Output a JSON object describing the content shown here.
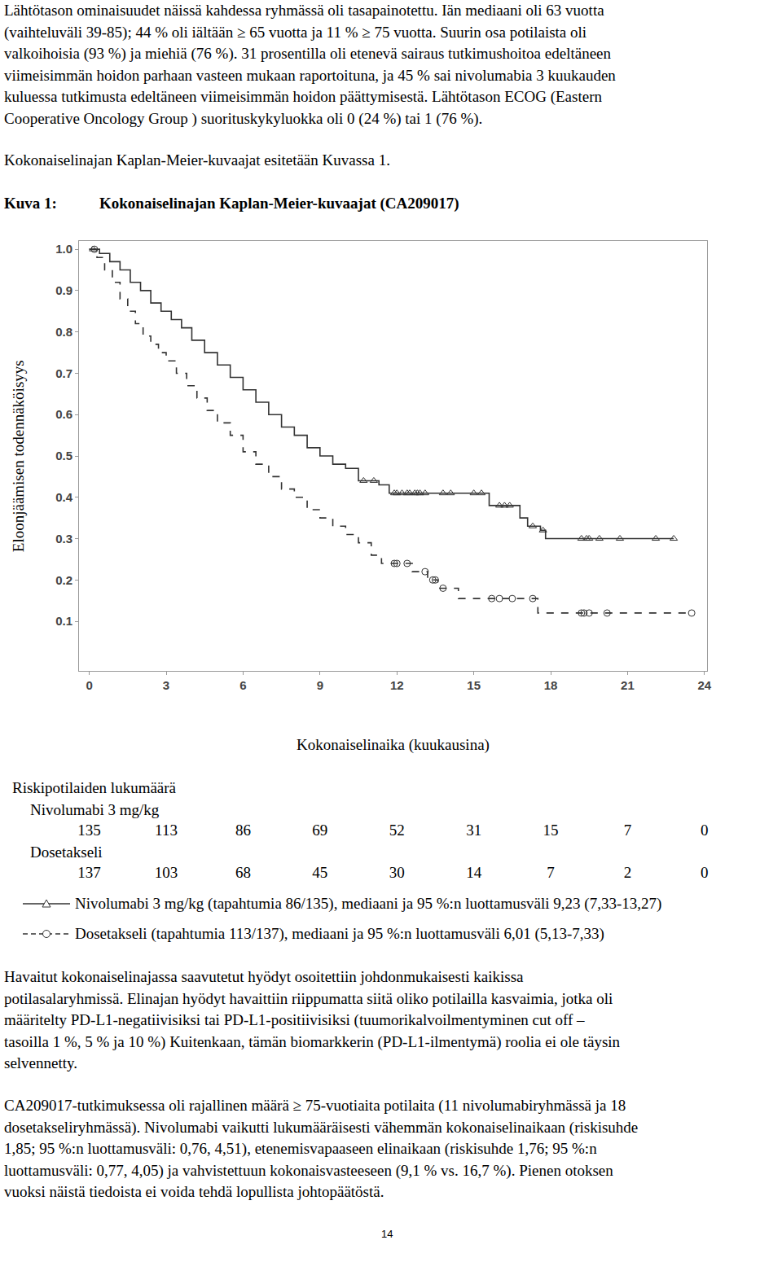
{
  "document": {
    "intro_lines": [
      "Lähtötason ominaisuudet näissä kahdessa ryhmässä oli tasapainotettu. Iän mediaani oli 63 vuotta",
      "(vaihteluväli 39-85); 44 % oli iältään ≥ 65 vuotta ja 11 % ≥ 75 vuotta. Suurin osa potilaista oli",
      "valkoihoisia (93 %) ja miehiä (76 %). 31 prosentilla oli etenevä sairaus tutkimushoitoa edeltäneen",
      "viimeisimmän hoidon parhaan vasteen mukaan raportoituna, ja 45 % sai nivolumabia 3 kuukauden",
      "kuluessa tutkimusta edeltäneen viimeisimmän hoidon päättymisestä. Lähtötason ECOG (Eastern",
      "Cooperative Oncology Group ) suorituskykyluokka oli 0 (24 %) tai 1 (76 %)."
    ],
    "intro_note": "Kokonaiselinajan Kaplan-Meier-kuvaajat esitetään Kuvassa 1.",
    "figure": {
      "label": "Kuva 1:",
      "title": "Kokonaiselinajan Kaplan-Meier-kuvaajat (CA209017)"
    },
    "risk_table": {
      "title": "Riskipotilaiden lukumäärä",
      "rows": [
        {
          "label": "Nivolumabi 3 mg/kg",
          "values": [
            135,
            113,
            86,
            69,
            52,
            31,
            15,
            7,
            0
          ]
        },
        {
          "label": "Dosetakseli",
          "values": [
            137,
            103,
            68,
            45,
            30,
            14,
            7,
            2,
            0
          ]
        }
      ]
    },
    "paragraphs": [
      [
        "Havaitut kokonaiselinajassa saavutetut hyödyt osoitettiin johdonmukaisesti kaikissa",
        "potilasalaryhmissä. Elinajan hyödyt havaittiin riippumatta siitä oliko potilailla kasvaimia, jotka oli",
        "määritelty PD-L1-negatiivisiksi tai PD-L1-positiivisiksi (tuumorikalvoilmentyminen cut off –",
        "tasoilla 1 %, 5 % ja 10 %) Kuitenkaan, tämän biomarkkerin (PD-L1-ilmentymä) roolia ei ole täysin",
        "selvennetty."
      ],
      [
        "CA209017-tutkimuksessa oli rajallinen määrä ≥ 75-vuotiaita potilaita (11 nivolumabiryhmässä ja 18",
        "dosetakseliryhmässä). Nivolumabi vaikutti lukumääräisesti vähemmän kokonaiselinaikaan (riskisuhde",
        "1,85; 95 %:n luottamusväli: 0,76, 4,51), etenemisvapaaseen elinaikaan (riskisuhde 1,76; 95 %:n",
        "luottamusväli: 0,77, 4,05) ja vahvistettuun kokonaisvasteeseen (9,1 % vs. 16,7 %). Pienen otoksen",
        "vuoksi näistä tiedoista ei voida tehdä lopullista johtopäätöstä."
      ]
    ],
    "page_number": "14"
  },
  "chart_data": {
    "type": "line",
    "xlabel": "Kokonaiselinaika (kuukausina)",
    "ylabel": "Eloonjäämisen todennäköisyys",
    "xlim": [
      -0.4,
      24.1
    ],
    "xticks": [
      0,
      3,
      6,
      9,
      12,
      15,
      18,
      21,
      24
    ],
    "ylim": [
      -0.02,
      1.02
    ],
    "yticks": [
      0.1,
      0.2,
      0.3,
      0.4,
      0.5,
      0.6,
      0.7,
      0.8,
      0.9,
      {
        "value": 1,
        "label": "1.0"
      }
    ],
    "grid": false,
    "series": [
      {
        "name": "Nivolumabi 3 mg/kg (tapahtumia 86/135), mediaani ja 95 %:n luottamusväli 9,23 (7,33-13,27)",
        "color": "#333333",
        "line_style": "solid",
        "marker": "triangle-up-open",
        "x": [
          0,
          0.4,
          0.8,
          1.2,
          1.6,
          2.0,
          2.4,
          2.8,
          3.2,
          3.6,
          4.0,
          4.5,
          5.0,
          5.5,
          6.0,
          6.5,
          7.0,
          7.5,
          8.0,
          8.5,
          9.0,
          9.5,
          10.0,
          10.5,
          11.3,
          11.7,
          15.6,
          16.8,
          17.1,
          17.6,
          17.8,
          22.8
        ],
        "values": [
          1.0,
          0.99,
          0.97,
          0.95,
          0.92,
          0.9,
          0.87,
          0.85,
          0.83,
          0.81,
          0.78,
          0.75,
          0.72,
          0.69,
          0.66,
          0.63,
          0.6,
          0.57,
          0.55,
          0.52,
          0.5,
          0.48,
          0.47,
          0.44,
          0.43,
          0.41,
          0.38,
          0.35,
          0.33,
          0.32,
          0.3,
          0.3
        ],
        "censored": {
          "x": [
            0.15,
            10.7,
            11.1,
            11.9,
            12.0,
            12.2,
            12.4,
            12.5,
            12.7,
            12.8,
            12.9,
            13.1,
            13.8,
            14.1,
            15.0,
            15.3,
            16.0,
            16.2,
            16.4,
            17.3,
            17.7,
            19.2,
            19.4,
            19.5,
            19.9,
            20.7,
            22.1,
            22.8
          ],
          "values": [
            1.0,
            0.44,
            0.44,
            0.41,
            0.41,
            0.41,
            0.41,
            0.41,
            0.41,
            0.41,
            0.41,
            0.41,
            0.41,
            0.41,
            0.41,
            0.41,
            0.38,
            0.38,
            0.38,
            0.33,
            0.32,
            0.3,
            0.3,
            0.3,
            0.3,
            0.3,
            0.3,
            0.3
          ]
        }
      },
      {
        "name": "Dosetakseli (tapahtumia 113/137), mediaani ja 95 %:n luottamusväli 6,01 (5,13-7,33)",
        "color": "#333333",
        "line_style": "dashed",
        "marker": "circle-open",
        "x": [
          0,
          0.3,
          0.6,
          0.9,
          1.2,
          1.5,
          1.8,
          2.1,
          2.4,
          2.7,
          3.0,
          3.4,
          3.8,
          4.2,
          4.6,
          5.0,
          5.5,
          6.0,
          6.5,
          7.0,
          7.5,
          8.0,
          8.5,
          9.0,
          9.5,
          10.0,
          10.5,
          11.0,
          11.4,
          12.6,
          13.2,
          13.6,
          14.4,
          17.5,
          23.5
        ],
        "values": [
          1.0,
          0.98,
          0.95,
          0.92,
          0.88,
          0.85,
          0.82,
          0.79,
          0.77,
          0.75,
          0.73,
          0.7,
          0.67,
          0.64,
          0.61,
          0.58,
          0.55,
          0.51,
          0.48,
          0.45,
          0.42,
          0.4,
          0.37,
          0.35,
          0.33,
          0.31,
          0.29,
          0.26,
          0.24,
          0.22,
          0.2,
          0.18,
          0.155,
          0.12,
          0.12
        ],
        "censored": {
          "x": [
            0.2,
            11.9,
            12.0,
            12.4,
            13.1,
            13.4,
            13.5,
            13.8,
            15.7,
            16.0,
            16.5,
            17.3,
            19.2,
            19.3,
            19.5,
            20.2,
            23.5
          ],
          "values": [
            1.0,
            0.24,
            0.24,
            0.24,
            0.22,
            0.2,
            0.2,
            0.18,
            0.155,
            0.155,
            0.155,
            0.155,
            0.12,
            0.12,
            0.12,
            0.12,
            0.12
          ]
        }
      }
    ]
  }
}
